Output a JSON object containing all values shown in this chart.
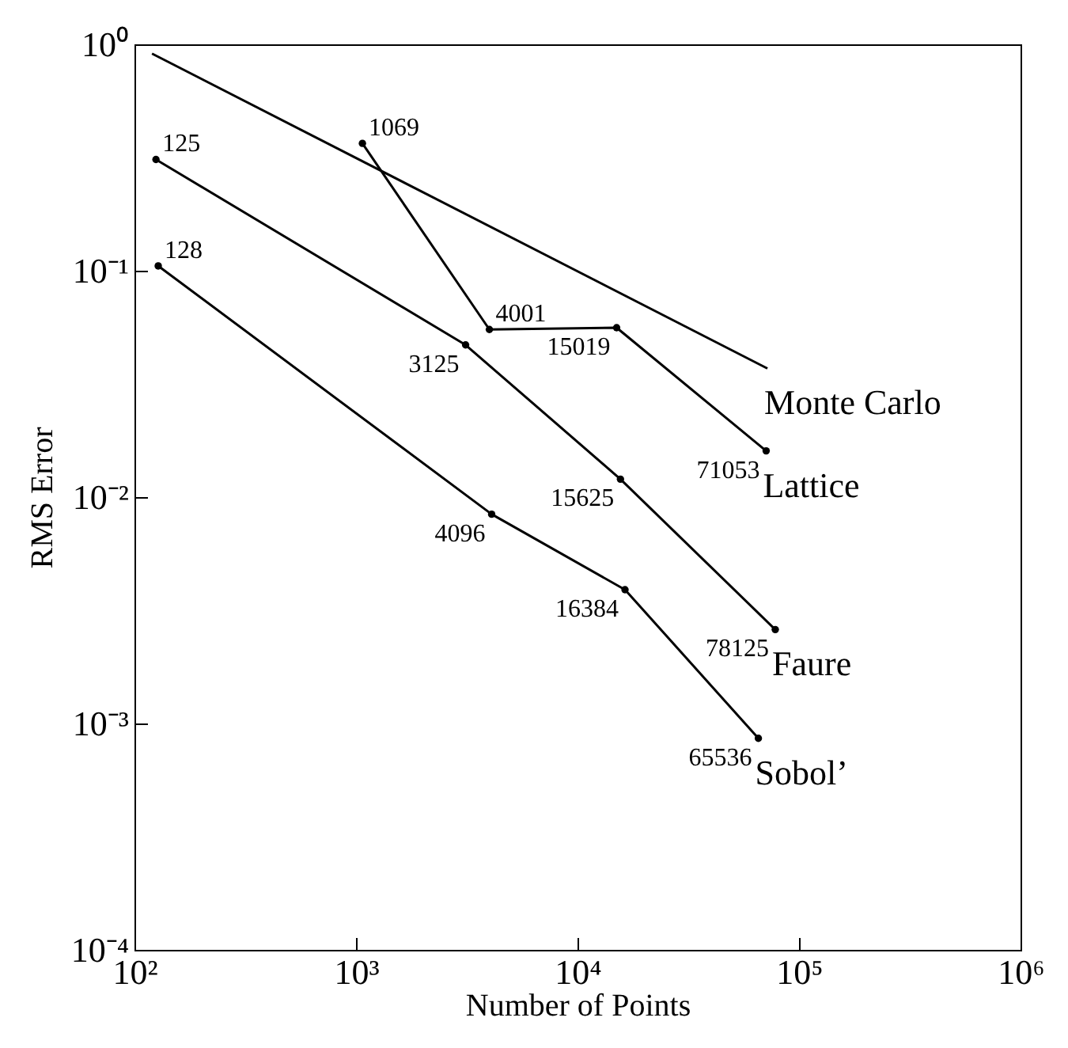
{
  "chart_data": {
    "type": "line",
    "xlabel": "Number of Points",
    "ylabel": "RMS Error",
    "log": "xy",
    "grid": false,
    "xlim": [
      100,
      1000000
    ],
    "ylim": [
      0.0001,
      1
    ],
    "xticks": [
      {
        "value": 100,
        "label": "10²"
      },
      {
        "value": 1000,
        "label": "10³"
      },
      {
        "value": 10000,
        "label": "10⁴"
      },
      {
        "value": 100000,
        "label": "10⁵"
      },
      {
        "value": 1000000,
        "label": "10⁶"
      }
    ],
    "yticks": [
      {
        "value": 0.0001,
        "label": "10⁻⁴"
      },
      {
        "value": 0.001,
        "label": "10⁻³"
      },
      {
        "value": 0.01,
        "label": "10⁻²"
      },
      {
        "value": 0.1,
        "label": "10⁻¹"
      },
      {
        "value": 1,
        "label": "10⁰"
      }
    ],
    "series": [
      {
        "name": "Monte Carlo",
        "color": "#000000",
        "marker": "none",
        "x": [
          120,
          72000
        ],
        "values": [
          0.91,
          0.037
        ]
      },
      {
        "name": "Lattice",
        "color": "#000000",
        "marker": "circle",
        "x": [
          1069,
          4001,
          15019,
          71053
        ],
        "values": [
          0.365,
          0.055,
          0.056,
          0.016
        ]
      },
      {
        "name": "Faure",
        "color": "#000000",
        "marker": "circle",
        "x": [
          125,
          3125,
          15625,
          78125
        ],
        "values": [
          0.31,
          0.047,
          0.012,
          0.0026
        ]
      },
      {
        "name": "Sobol’",
        "color": "#000000",
        "marker": "circle",
        "x": [
          128,
          4096,
          16384,
          65536
        ],
        "values": [
          0.105,
          0.0084,
          0.0039,
          0.00086
        ]
      }
    ],
    "annotations": [
      {
        "text": "1069",
        "x": 1069,
        "y": 0.365
      },
      {
        "text": "4001",
        "x": 4001,
        "y": 0.055
      },
      {
        "text": "15019",
        "x": 15019,
        "y": 0.056
      },
      {
        "text": "71053",
        "x": 71053,
        "y": 0.016
      },
      {
        "text": "125",
        "x": 125,
        "y": 0.31
      },
      {
        "text": "3125",
        "x": 3125,
        "y": 0.047
      },
      {
        "text": "15625",
        "x": 15625,
        "y": 0.012
      },
      {
        "text": "78125",
        "x": 78125,
        "y": 0.0026
      },
      {
        "text": "128",
        "x": 128,
        "y": 0.105
      },
      {
        "text": "4096",
        "x": 4096,
        "y": 0.0084
      },
      {
        "text": "16384",
        "x": 16384,
        "y": 0.0039
      },
      {
        "text": "65536",
        "x": 65536,
        "y": 0.00086
      }
    ]
  }
}
